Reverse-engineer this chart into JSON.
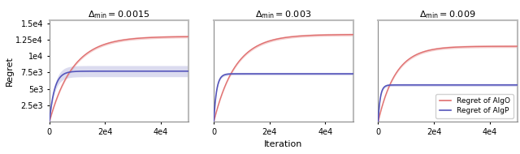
{
  "subplots": [
    {
      "delta_min": "0.0015",
      "algoO_final": 13000,
      "algoO_rate": 0.00012,
      "algoP_final": 7700,
      "algoP_rate": 0.00055,
      "algoP_band_lo": 6500,
      "algoP_band_hi": 8200,
      "algoO_band": 200,
      "show_ylabel": true,
      "show_xlabel": false,
      "show_yticks": true
    },
    {
      "delta_min": "0.003",
      "algoO_final": 13300,
      "algoO_rate": 0.00013,
      "algoP_final": 7300,
      "algoP_rate": 0.001,
      "algoP_band_lo": 7100,
      "algoP_band_hi": 7500,
      "algoO_band": 200,
      "show_ylabel": false,
      "show_xlabel": true,
      "show_yticks": false
    },
    {
      "delta_min": "0.009",
      "algoO_final": 11500,
      "algoO_rate": 0.00016,
      "algoP_final": 5600,
      "algoP_rate": 0.0013,
      "algoP_band_lo": 5400,
      "algoP_band_hi": 5800,
      "algoO_band": 200,
      "show_ylabel": false,
      "show_xlabel": false,
      "show_yticks": false
    }
  ],
  "x_max": 50000,
  "n_points": 400,
  "color_algoO": "#e07070",
  "color_algoP": "#5555bb",
  "color_algoO_fill": "#e07070",
  "color_algoP_fill": "#8888cc",
  "fill_algoO_alpha": 0.35,
  "fill_algoP_alpha": 0.3,
  "ylabel": "Regret",
  "xlabel": "Iteration",
  "legend_labels": [
    "Regret of AlgO",
    "Regret of AlgP"
  ],
  "ylim": [
    0,
    15500
  ],
  "yticks": [
    2500,
    5000,
    7500,
    10000,
    12500,
    15000
  ],
  "ytick_labels": [
    "2.5e3",
    "5e3",
    "7.5e3",
    "1e4",
    "1.25e4",
    "1.5e4"
  ],
  "xticks": [
    0,
    20000,
    40000
  ],
  "xtick_labels": [
    "0",
    "2e4",
    "4e4"
  ],
  "top_spine_color": "#bbbbbb",
  "right_spine_color": "#bbbbbb"
}
